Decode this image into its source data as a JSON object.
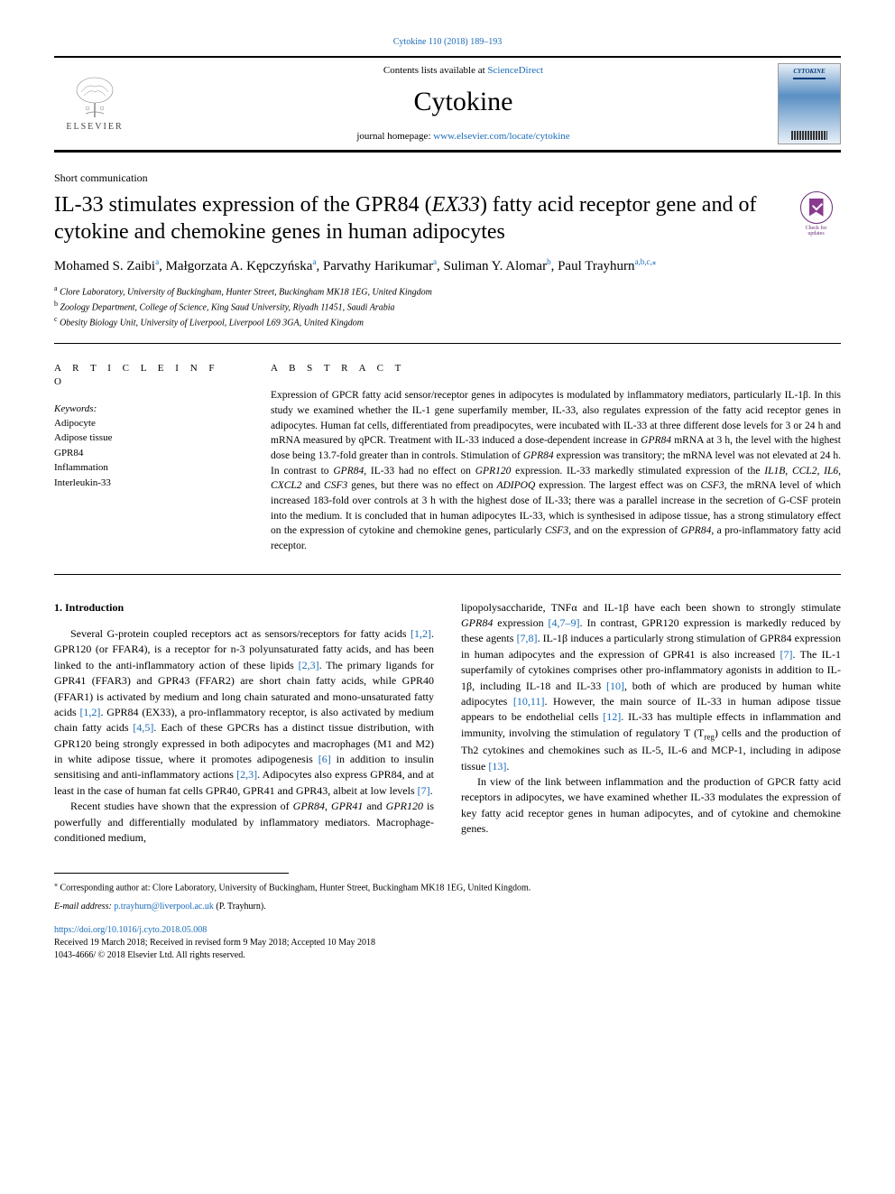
{
  "top_citation": "Cytokine 110 (2018) 189–193",
  "header": {
    "contents_prefix": "Contents lists available at ",
    "contents_link": "ScienceDirect",
    "journal_name": "Cytokine",
    "homepage_prefix": "journal homepage: ",
    "homepage_url": "www.elsevier.com/locate/cytokine",
    "elsevier_label": "ELSEVIER",
    "cover_title": "CYTOKINE"
  },
  "check_updates": {
    "line1": "Check for",
    "line2": "updates"
  },
  "article_type": "Short communication",
  "title_pre": "IL-33 stimulates expression of the GPR84 (",
  "title_italic": "EX33",
  "title_post": ") fatty acid receptor gene and of cytokine and chemokine genes in human adipocytes",
  "authors_html": "Mohamed S. Zaibi",
  "authors": [
    {
      "name": "Mohamed S. Zaibi",
      "sup": "a"
    },
    {
      "name": "Małgorzata A. Kępczyńska",
      "sup": "a"
    },
    {
      "name": "Parvathy Harikumar",
      "sup": "a"
    },
    {
      "name": "Suliman Y. Alomar",
      "sup": "b"
    },
    {
      "name": "Paul Trayhurn",
      "sup": "a,b,c,⁎"
    }
  ],
  "affiliations": [
    {
      "sup": "a",
      "text": "Clore Laboratory, University of Buckingham, Hunter Street, Buckingham MK18 1EG, United Kingdom"
    },
    {
      "sup": "b",
      "text": "Zoology Department, College of Science, King Saud University, Riyadh 11451, Saudi Arabia"
    },
    {
      "sup": "c",
      "text": "Obesity Biology Unit, University of Liverpool, Liverpool L69 3GA, United Kingdom"
    }
  ],
  "info_heading": "A R T I C L E  I N F O",
  "abstract_heading": "A B S T R A C T",
  "keywords_label": "Keywords:",
  "keywords": [
    "Adipocyte",
    "Adipose tissue",
    "GPR84",
    "Inflammation",
    "Interleukin-33"
  ],
  "abstract": "Expression of GPCR fatty acid sensor/receptor genes in adipocytes is modulated by inflammatory mediators, particularly IL-1β. In this study we examined whether the IL-1 gene superfamily member, IL-33, also regulates expression of the fatty acid receptor genes in adipocytes. Human fat cells, differentiated from preadipocytes, were incubated with IL-33 at three different dose levels for 3 or 24 h and mRNA measured by qPCR. Treatment with IL-33 induced a dose-dependent increase in GPR84 mRNA at 3 h, the level with the highest dose being 13.7-fold greater than in controls. Stimulation of GPR84 expression was transitory; the mRNA level was not elevated at 24 h. In contrast to GPR84, IL-33 had no effect on GPR120 expression. IL-33 markedly stimulated expression of the IL1B, CCL2, IL6, CXCL2 and CSF3 genes, but there was no effect on ADIPOQ expression. The largest effect was on CSF3, the mRNA level of which increased 183-fold over controls at 3 h with the highest dose of IL-33; there was a parallel increase in the secretion of G-CSF protein into the medium. It is concluded that in human adipocytes IL-33, which is synthesised in adipose tissue, has a strong stimulatory effect on the expression of cytokine and chemokine genes, particularly CSF3, and on the expression of GPR84, a pro-inflammatory fatty acid receptor.",
  "intro_heading": "1. Introduction",
  "intro_p1_a": "Several G-protein coupled receptors act as sensors/receptors for fatty acids ",
  "intro_p1_ref1": "[1,2]",
  "intro_p1_b": ". GPR120 (or FFAR4), is a receptor for n-3 polyunsaturated fatty acids, and has been linked to the anti-inflammatory action of these lipids ",
  "intro_p1_ref2": "[2,3]",
  "intro_p1_c": ". The primary ligands for GPR41 (FFAR3) and GPR43 (FFAR2) are short chain fatty acids, while GPR40 (FFAR1) is activated by medium and long chain saturated and mono-unsaturated fatty acids ",
  "intro_p1_ref3": "[1,2]",
  "intro_p1_d": ". GPR84 (EX33), a pro-inflammatory receptor, is also activated by medium chain fatty acids ",
  "intro_p1_ref4": "[4,5]",
  "intro_p1_e": ". Each of these GPCRs has a distinct tissue distribution, with GPR120 being strongly expressed in both adipocytes and macrophages (M1 and M2) in white adipose tissue, where it promotes adipogenesis ",
  "intro_p1_ref5": "[6]",
  "intro_p1_f": " in addition to insulin sensitising and anti-inflammatory actions ",
  "intro_p1_ref6": "[2,3]",
  "intro_p1_g": ". Adipocytes also express GPR84, and at least in the case of human fat cells GPR40, GPR41 and GPR43, albeit at low levels ",
  "intro_p1_ref7": "[7]",
  "intro_p1_h": ".",
  "intro_p2_a": "Recent studies have shown that the expression of ",
  "intro_p2_i1": "GPR84",
  "intro_p2_b": ", ",
  "intro_p2_i2": "GPR41",
  "intro_p2_c": " and ",
  "intro_p2_i3": "GPR120",
  "intro_p2_d": " is powerfully and differentially modulated by inflammatory mediators. Macrophage-conditioned medium, ",
  "col2_p1_a": "lipopolysaccharide, TNFα and IL-1β have each been shown to strongly stimulate ",
  "col2_p1_i1": "GPR84",
  "col2_p1_b": " expression ",
  "col2_p1_ref1": "[4,7–9]",
  "col2_p1_c": ". In contrast, GPR120 expression is markedly reduced by these agents ",
  "col2_p1_ref2": "[7,8]",
  "col2_p1_d": ". IL-1β induces a particularly strong stimulation of GPR84 expression in human adipocytes and the expression of GPR41 is also increased ",
  "col2_p1_ref3": "[7]",
  "col2_p1_e": ". The IL-1 superfamily of cytokines comprises other pro-inflammatory agonists in addition to IL-1β, including IL-18 and IL-33 ",
  "col2_p1_ref4": "[10]",
  "col2_p1_f": ", both of which are produced by human white adipocytes ",
  "col2_p1_ref5": "[10,11]",
  "col2_p1_g": ". However, the main source of IL-33 in human adipose tissue appears to be endothelial cells ",
  "col2_p1_ref6": "[12]",
  "col2_p1_h": ". IL-33 has multiple effects in inflammation and immunity, involving the stimulation of regulatory T (T",
  "col2_p1_sub": "reg",
  "col2_p1_i": ") cells and the production of Th2 cytokines and chemokines such as IL-5, IL-6 and MCP-1, including in adipose tissue ",
  "col2_p1_ref7": "[13]",
  "col2_p1_j": ".",
  "col2_p2": "In view of the link between inflammation and the production of GPCR fatty acid receptors in adipocytes, we have examined whether IL-33 modulates the expression of key fatty acid receptor genes in human adipocytes, and of cytokine and chemokine genes.",
  "footnote_corr_sym": "⁎",
  "footnote_corr": " Corresponding author at: Clore Laboratory, University of Buckingham, Hunter Street, Buckingham MK18 1EG, United Kingdom.",
  "footnote_email_label": "E-mail address: ",
  "footnote_email": "p.trayhurn@liverpool.ac.uk",
  "footnote_email_suffix": " (P. Trayhurn).",
  "doi": "https://doi.org/10.1016/j.cyto.2018.05.008",
  "received": "Received 19 March 2018; Received in revised form 9 May 2018; Accepted 10 May 2018",
  "copyright": "1043-4666/ © 2018 Elsevier Ltd. All rights reserved.",
  "colors": {
    "link": "#1a6bb8",
    "elsevier_orange": "#e67817",
    "purple": "#6a2d7a"
  }
}
